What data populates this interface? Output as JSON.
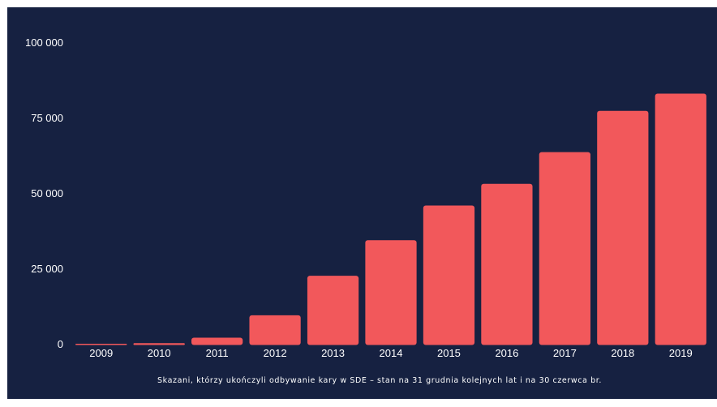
{
  "chart_data": {
    "type": "bar",
    "categories": [
      "2009",
      "2010",
      "2011",
      "2012",
      "2013",
      "2014",
      "2015",
      "2016",
      "2017",
      "2018",
      "2019"
    ],
    "values": [
      120,
      480,
      2300,
      9700,
      22800,
      34600,
      46100,
      53300,
      63800,
      77500,
      83200
    ],
    "ylim": [
      0,
      100000
    ],
    "yticks": [
      0,
      25000,
      50000,
      75000,
      100000
    ],
    "ytick_labels": [
      "0",
      "25 000",
      "50 000",
      "75 000",
      "100 000"
    ],
    "caption": "Skazani, którzy ukończyli odbywanie kary w SDE – stan na 31 grudnia kolejnych lat i na 30 czerwca br.",
    "grid": false,
    "legend": "none",
    "colors": {
      "background": "#162141",
      "bar": "#f2585b",
      "text": "#ffffff"
    }
  }
}
